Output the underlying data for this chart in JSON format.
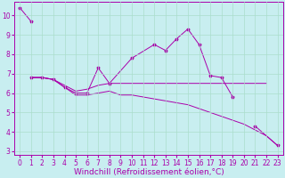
{
  "background_color": "#c8eef0",
  "grid_color": "#aaddcc",
  "line_color": "#aa00aa",
  "marker": "*",
  "xlabel": "Windchill (Refroidissement éolien,°C)",
  "xlabel_fontsize": 6.5,
  "tick_fontsize": 5.5,
  "xlim": [
    -0.5,
    23.5
  ],
  "ylim": [
    2.8,
    10.7
  ],
  "yticks": [
    3,
    4,
    5,
    6,
    7,
    8,
    9,
    10
  ],
  "xticks": [
    0,
    1,
    2,
    3,
    4,
    5,
    6,
    7,
    8,
    9,
    10,
    11,
    12,
    13,
    14,
    15,
    16,
    17,
    18,
    19,
    20,
    21,
    22,
    23
  ],
  "series": [
    {
      "x": [
        0,
        1
      ],
      "y": [
        10.4,
        9.7
      ],
      "marker": true,
      "linestyle": "-"
    },
    {
      "x": [
        1,
        2,
        3,
        4,
        5,
        6,
        7,
        8,
        10,
        12,
        13,
        14,
        15,
        16,
        17,
        18,
        19
      ],
      "y": [
        6.8,
        6.8,
        6.7,
        6.3,
        6.0,
        6.0,
        7.3,
        6.5,
        7.8,
        8.5,
        8.2,
        8.8,
        9.3,
        8.5,
        6.9,
        6.8,
        5.8
      ],
      "marker": true,
      "linestyle": "-"
    },
    {
      "x": [
        21,
        23
      ],
      "y": [
        4.3,
        3.3
      ],
      "marker": true,
      "linestyle": "-"
    },
    {
      "x": [
        1,
        2,
        3,
        4,
        5,
        6,
        7,
        8,
        9,
        10,
        11,
        12,
        13,
        14,
        15,
        16,
        17,
        18,
        19,
        20,
        21,
        22
      ],
      "y": [
        6.8,
        6.8,
        6.7,
        6.4,
        6.1,
        6.2,
        6.4,
        6.5,
        6.5,
        6.5,
        6.5,
        6.5,
        6.5,
        6.5,
        6.5,
        6.5,
        6.5,
        6.5,
        6.5,
        6.5,
        6.5,
        6.5
      ],
      "marker": false,
      "linestyle": "-"
    },
    {
      "x": [
        1,
        2,
        3,
        4,
        5,
        6,
        7,
        8,
        9,
        10,
        11,
        12,
        13,
        14,
        15,
        16,
        17,
        18,
        19,
        20,
        21,
        22,
        23
      ],
      "y": [
        6.8,
        6.8,
        6.7,
        6.3,
        5.9,
        5.9,
        6.0,
        6.1,
        5.9,
        5.9,
        5.8,
        5.7,
        5.6,
        5.5,
        5.4,
        5.2,
        5.0,
        4.8,
        4.6,
        4.4,
        4.1,
        3.8,
        3.3
      ],
      "marker": false,
      "linestyle": "-"
    }
  ]
}
